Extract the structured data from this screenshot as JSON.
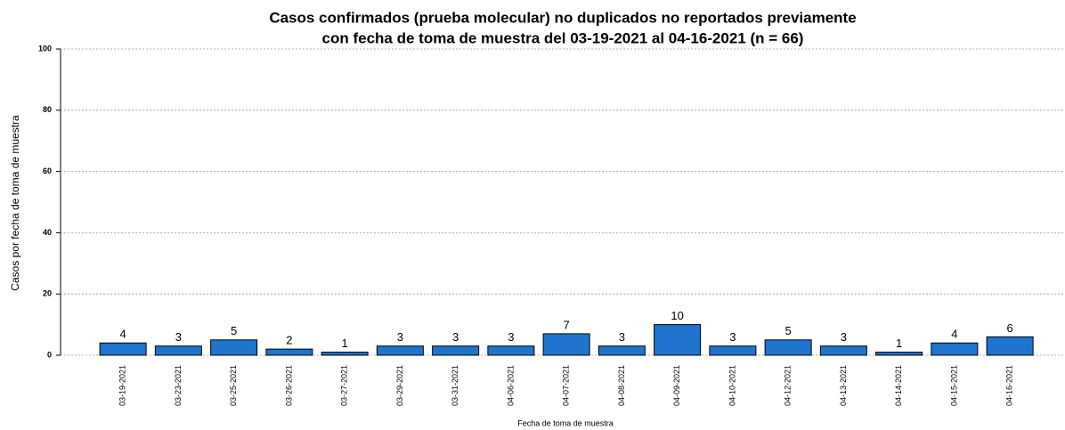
{
  "chart_data": {
    "type": "bar",
    "title": [
      "Casos confirmados (prueba molecular) no duplicados no reportados previamente",
      "con fecha de toma de muestra del 03-19-2021 al 04-16-2021 (n = 66)"
    ],
    "x_label": "Fecha de toma de muestra",
    "y_label": "Casos por fecha de toma de muestra",
    "categories": [
      "03-19-2021",
      "03-23-2021",
      "03-25-2021",
      "03-26-2021",
      "03-27-2021",
      "03-29-2021",
      "03-31-2021",
      "04-06-2021",
      "04-07-2021",
      "04-08-2021",
      "04-09-2021",
      "04-10-2021",
      "04-12-2021",
      "04-13-2021",
      "04-14-2021",
      "04-15-2021",
      "04-16-2021"
    ],
    "values": [
      4,
      3,
      5,
      2,
      1,
      3,
      3,
      3,
      7,
      3,
      10,
      3,
      5,
      3,
      1,
      4,
      6
    ],
    "color": "#1f74cf",
    "ylim": [
      0,
      100
    ],
    "yticks": [
      0,
      20,
      40,
      60,
      80,
      100
    ],
    "grid": true
  }
}
